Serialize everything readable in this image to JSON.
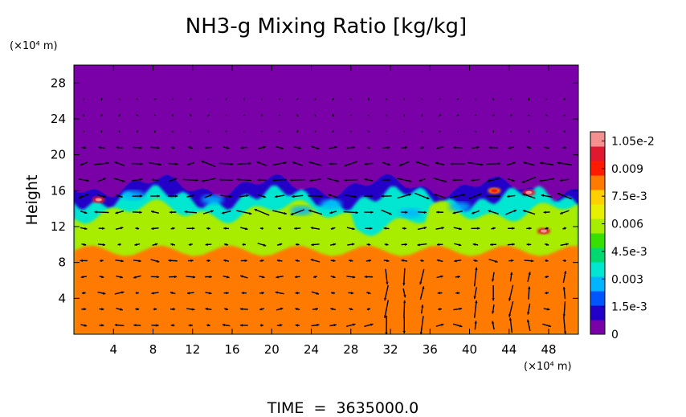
{
  "chart_data": {
    "type": "heatmap",
    "title": "NH3-g Mixing Ratio [kg/kg]",
    "xlabel": "",
    "ylabel": "Height",
    "x_unit": "(×10⁴ m)",
    "y_unit": "(×10⁴ m)",
    "xlim": [
      0,
      51
    ],
    "ylim": [
      0,
      30
    ],
    "x_ticks": [
      "4",
      "8",
      "12",
      "16",
      "20",
      "24",
      "28",
      "32",
      "36",
      "40",
      "44",
      "48"
    ],
    "x_tick_values": [
      4,
      8,
      12,
      16,
      20,
      24,
      28,
      32,
      36,
      40,
      44,
      48
    ],
    "y_ticks": [
      "4",
      "8",
      "12",
      "16",
      "20",
      "24",
      "28"
    ],
    "y_tick_values": [
      4,
      8,
      12,
      16,
      20,
      24,
      28
    ],
    "colorbar": {
      "min": 0,
      "max": 0.011,
      "labels": [
        "1.05e-2",
        "0.009",
        "7.5e-3",
        "0.006",
        "4.5e-3",
        "0.003",
        "1.5e-3",
        "0"
      ],
      "label_values": [
        0.0105,
        0.009,
        0.0075,
        0.006,
        0.0045,
        0.003,
        0.0015,
        0
      ],
      "colors": [
        "#7a00a8",
        "#2200c8",
        "#0055ff",
        "#00b4ff",
        "#00e6d0",
        "#00d870",
        "#38e000",
        "#a8ec00",
        "#e6f000",
        "#ffd000",
        "#ff7a00",
        "#ff1a00",
        "#e01830",
        "#f49090"
      ]
    },
    "fields": {
      "top_value": 0.0,
      "lower_value": 0.0079,
      "middle_value": 0.0058,
      "interface_height": 16.5,
      "middle_band_bottom": 9
    },
    "hotspots": [
      {
        "x": 2.5,
        "y": 15,
        "value": 0.0105
      },
      {
        "x": 46,
        "y": 15.8,
        "value": 0.0105
      },
      {
        "x": 47.5,
        "y": 11.5,
        "value": 0.0105
      },
      {
        "x": 42.5,
        "y": 16,
        "value": 0.009
      }
    ],
    "vectors_shown": true,
    "footer": "TIME  =  3635000.0"
  }
}
